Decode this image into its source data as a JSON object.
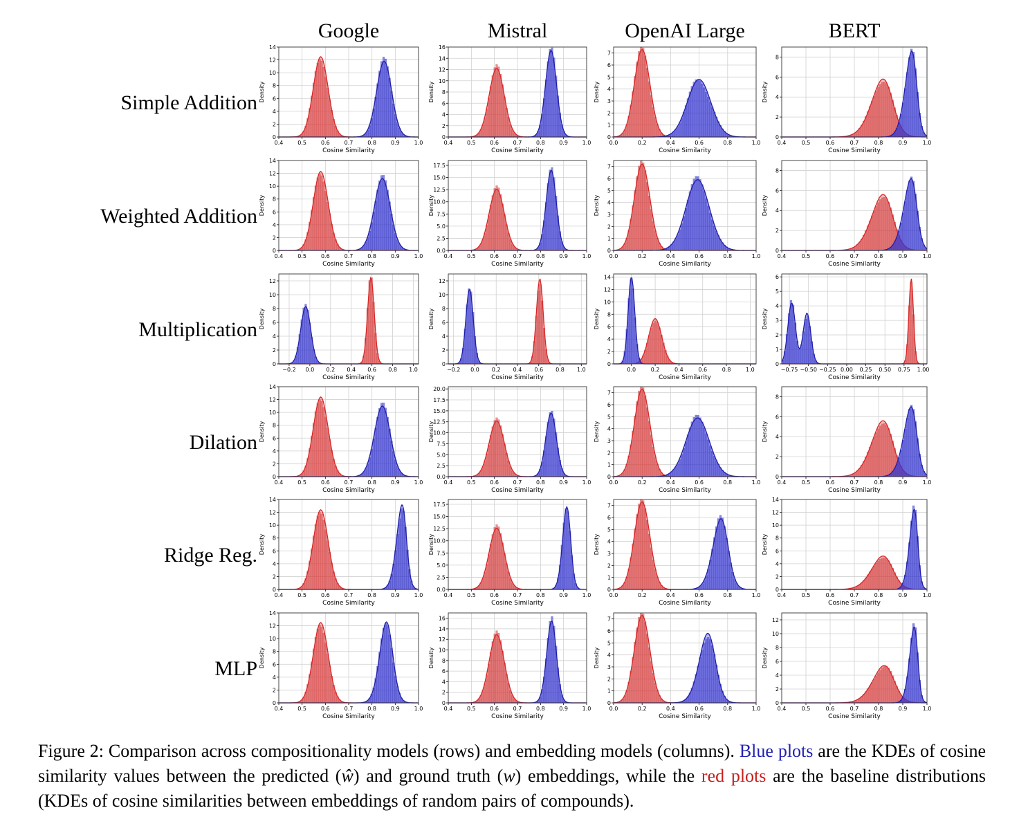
{
  "columns": [
    "Google",
    "Mistral",
    "OpenAI Large",
    "BERT"
  ],
  "rows": [
    "Simple Addition",
    "Weighted Addition",
    "Multiplication",
    "Dilation",
    "Ridge Reg.",
    "MLP"
  ],
  "axis": {
    "xlabel": "Cosine Similarity",
    "ylabel": "Density"
  },
  "colors": {
    "red_fill": "#d64545",
    "red_line": "#d62728",
    "blue_fill": "#3a3ad0",
    "blue_line": "#1f1fa8",
    "grid": "#d0d0d0"
  },
  "caption": {
    "part1": "Figure 2: Comparison across compositionality models (rows) and embedding models (columns). ",
    "blue_phrase": "Blue plots",
    "part2": " are the KDEs of cosine similarity values between the predicted (",
    "w_hat": "ŵ",
    "part3": ") and ground truth (",
    "w": "w",
    "part4": ") embeddings, while the ",
    "red_phrase": "red plots",
    "part5": " are the baseline distributions (KDEs of cosine similarities between embeddings of random pairs of compounds)."
  },
  "chart_data": [
    {
      "row": "Simple Addition",
      "col": "Google",
      "type": "area",
      "xlim": [
        0.4,
        1.0
      ],
      "xticks": [
        "0.4",
        "0.5",
        "0.6",
        "0.7",
        "0.8",
        "0.9",
        "1.0"
      ],
      "ylim": [
        0,
        14
      ],
      "yticks": [
        "0",
        "2",
        "4",
        "6",
        "8",
        "10",
        "12",
        "14"
      ],
      "red": [
        {
          "mu": 0.58,
          "sd": 0.032,
          "peak": 12.5,
          "skew": 0
        }
      ],
      "blue": [
        {
          "mu": 0.865,
          "sd": 0.035,
          "peak": 11.8,
          "skew": -0.5
        }
      ]
    },
    {
      "row": "Simple Addition",
      "col": "Mistral",
      "type": "area",
      "xlim": [
        0.4,
        1.0
      ],
      "xticks": [
        "0.4",
        "0.5",
        "0.6",
        "0.7",
        "0.8",
        "0.9",
        "1.0"
      ],
      "ylim": [
        0,
        16
      ],
      "yticks": [
        "0",
        "2",
        "4",
        "6",
        "8",
        "10",
        "12",
        "14",
        "16"
      ],
      "red": [
        {
          "mu": 0.61,
          "sd": 0.033,
          "peak": 12.2,
          "skew": 0
        }
      ],
      "blue": [
        {
          "mu": 0.855,
          "sd": 0.026,
          "peak": 15.4,
          "skew": -0.5
        }
      ]
    },
    {
      "row": "Simple Addition",
      "col": "OpenAI Large",
      "type": "area",
      "xlim": [
        0.0,
        1.0
      ],
      "xticks": [
        "0.0",
        "0.2",
        "0.4",
        "0.6",
        "0.8",
        "1.0"
      ],
      "ylim": [
        0,
        7.5
      ],
      "yticks": [
        "0",
        "1",
        "2",
        "3",
        "4",
        "5",
        "6",
        "7"
      ],
      "red": [
        {
          "mu": 0.2,
          "sd": 0.055,
          "peak": 7.3,
          "skew": 0
        }
      ],
      "blue": [
        {
          "mu": 0.62,
          "sd": 0.085,
          "peak": 4.8,
          "skew": -0.3
        }
      ]
    },
    {
      "row": "Simple Addition",
      "col": "BERT",
      "type": "area",
      "xlim": [
        0.4,
        1.0
      ],
      "xticks": [
        "0.4",
        "0.5",
        "0.6",
        "0.7",
        "0.8",
        "0.9",
        "1.0"
      ],
      "ylim": [
        0,
        9
      ],
      "yticks": [
        "0",
        "2",
        "4",
        "6",
        "8"
      ],
      "red": [
        {
          "mu": 0.85,
          "sd": 0.06,
          "peak": 5.8,
          "skew": -1.4
        }
      ],
      "blue": [
        {
          "mu": 0.955,
          "sd": 0.035,
          "peak": 8.6,
          "skew": -1.8
        }
      ]
    },
    {
      "row": "Weighted Addition",
      "col": "Google",
      "type": "area",
      "xlim": [
        0.4,
        1.0
      ],
      "xticks": [
        "0.4",
        "0.5",
        "0.6",
        "0.7",
        "0.8",
        "0.9",
        "1.0"
      ],
      "ylim": [
        0,
        14
      ],
      "yticks": [
        "0",
        "2",
        "4",
        "6",
        "8",
        "10",
        "12",
        "14"
      ],
      "red": [
        {
          "mu": 0.58,
          "sd": 0.032,
          "peak": 12.3,
          "skew": 0
        }
      ],
      "blue": [
        {
          "mu": 0.86,
          "sd": 0.038,
          "peak": 11.2,
          "skew": -0.6
        }
      ]
    },
    {
      "row": "Weighted Addition",
      "col": "Mistral",
      "type": "area",
      "xlim": [
        0.4,
        1.0
      ],
      "xticks": [
        "0.4",
        "0.5",
        "0.6",
        "0.7",
        "0.8",
        "0.9",
        "1.0"
      ],
      "ylim": [
        0,
        18.5
      ],
      "yticks": [
        "0.0",
        "2.5",
        "5.0",
        "7.5",
        "10.0",
        "12.5",
        "15.0",
        "17.5"
      ],
      "red": [
        {
          "mu": 0.61,
          "sd": 0.033,
          "peak": 12.6,
          "skew": 0
        }
      ],
      "blue": [
        {
          "mu": 0.855,
          "sd": 0.024,
          "peak": 16.5,
          "skew": -0.5
        }
      ]
    },
    {
      "row": "Weighted Addition",
      "col": "OpenAI Large",
      "type": "area",
      "xlim": [
        0.0,
        1.0
      ],
      "xticks": [
        "0.0",
        "0.2",
        "0.4",
        "0.6",
        "0.8",
        "1.0"
      ],
      "ylim": [
        0,
        7.5
      ],
      "yticks": [
        "0",
        "1",
        "2",
        "3",
        "4",
        "5",
        "6",
        "7"
      ],
      "red": [
        {
          "mu": 0.2,
          "sd": 0.055,
          "peak": 7.2,
          "skew": 0
        }
      ],
      "blue": [
        {
          "mu": 0.61,
          "sd": 0.085,
          "peak": 5.9,
          "skew": -0.3
        }
      ]
    },
    {
      "row": "Weighted Addition",
      "col": "BERT",
      "type": "area",
      "xlim": [
        0.4,
        1.0
      ],
      "xticks": [
        "0.4",
        "0.5",
        "0.6",
        "0.7",
        "0.8",
        "0.9",
        "1.0"
      ],
      "ylim": [
        0,
        9
      ],
      "yticks": [
        "0",
        "2",
        "4",
        "6",
        "8"
      ],
      "red": [
        {
          "mu": 0.85,
          "sd": 0.06,
          "peak": 5.6,
          "skew": -1.4
        }
      ],
      "blue": [
        {
          "mu": 0.955,
          "sd": 0.04,
          "peak": 7.2,
          "skew": -1.8
        }
      ]
    },
    {
      "row": "Multiplication",
      "col": "Google",
      "type": "area",
      "xlim": [
        -0.3,
        1.05
      ],
      "xticks": [
        "−0.2",
        "0.0",
        "0.2",
        "0.4",
        "0.6",
        "0.8",
        "1.0"
      ],
      "xtickvals": [
        -0.2,
        0.0,
        0.2,
        0.4,
        0.6,
        0.8,
        1.0
      ],
      "ylim": [
        0,
        13
      ],
      "yticks": [
        "0",
        "2",
        "4",
        "6",
        "8",
        "10",
        "12"
      ],
      "red": [
        {
          "mu": 0.59,
          "sd": 0.032,
          "peak": 12.5,
          "skew": 0
        }
      ],
      "blue": [
        {
          "mu": -0.04,
          "sd": 0.048,
          "peak": 8.3,
          "skew": 0
        }
      ]
    },
    {
      "row": "Multiplication",
      "col": "Mistral",
      "type": "area",
      "xlim": [
        -0.25,
        1.05
      ],
      "xticks": [
        "−0.2",
        "0.0",
        "0.2",
        "0.4",
        "0.6",
        "0.8",
        "1.0"
      ],
      "xtickvals": [
        -0.2,
        0.0,
        0.2,
        0.4,
        0.6,
        0.8,
        1.0
      ],
      "ylim": [
        0,
        13
      ],
      "yticks": [
        "0",
        "2",
        "4",
        "6",
        "8",
        "10",
        "12"
      ],
      "red": [
        {
          "mu": 0.61,
          "sd": 0.032,
          "peak": 12.3,
          "skew": 0
        }
      ],
      "blue": [
        {
          "mu": -0.05,
          "sd": 0.035,
          "peak": 10.8,
          "skew": 0
        }
      ]
    },
    {
      "row": "Multiplication",
      "col": "OpenAI Large",
      "type": "area",
      "xlim": [
        -0.15,
        1.05
      ],
      "xticks": [
        "0.0",
        "0.2",
        "0.4",
        "0.6",
        "0.8",
        "1.0"
      ],
      "xtickvals": [
        0.0,
        0.2,
        0.4,
        0.6,
        0.8,
        1.0
      ],
      "ylim": [
        0,
        14.5
      ],
      "yticks": [
        "0",
        "2",
        "4",
        "6",
        "8",
        "10",
        "12",
        "14"
      ],
      "red": [
        {
          "mu": 0.2,
          "sd": 0.055,
          "peak": 7.3,
          "skew": 0
        }
      ],
      "blue": [
        {
          "mu": 0.0,
          "sd": 0.028,
          "peak": 14.0,
          "skew": 0
        }
      ]
    },
    {
      "row": "Multiplication",
      "col": "BERT",
      "type": "area",
      "xlim": [
        -0.85,
        1.05
      ],
      "xticks": [
        "−0.75",
        "−0.50",
        "−0.25",
        "0.00",
        "0.25",
        "0.50",
        "0.75",
        "1.00"
      ],
      "xtickvals": [
        -0.75,
        -0.5,
        -0.25,
        0.0,
        0.25,
        0.5,
        0.75,
        1.0
      ],
      "ylim": [
        0,
        6.2
      ],
      "yticks": [
        "0",
        "1",
        "2",
        "3",
        "4",
        "5",
        "6"
      ],
      "red": [
        {
          "mu": 0.86,
          "sd": 0.035,
          "peak": 5.9,
          "skew": -0.8
        }
      ],
      "blue": [
        {
          "mu": -0.72,
          "sd": 0.05,
          "peak": 4.2,
          "skew": 0
        },
        {
          "mu": -0.52,
          "sd": 0.05,
          "peak": 3.5,
          "skew": 0
        }
      ]
    },
    {
      "row": "Dilation",
      "col": "Google",
      "type": "area",
      "xlim": [
        0.4,
        1.0
      ],
      "xticks": [
        "0.4",
        "0.5",
        "0.6",
        "0.7",
        "0.8",
        "0.9",
        "1.0"
      ],
      "ylim": [
        0,
        14
      ],
      "yticks": [
        "0",
        "2",
        "4",
        "6",
        "8",
        "10",
        "12",
        "14"
      ],
      "red": [
        {
          "mu": 0.58,
          "sd": 0.032,
          "peak": 12.4,
          "skew": 0
        }
      ],
      "blue": [
        {
          "mu": 0.86,
          "sd": 0.038,
          "peak": 11.0,
          "skew": -0.6
        }
      ]
    },
    {
      "row": "Dilation",
      "col": "Mistral",
      "type": "area",
      "xlim": [
        0.4,
        1.0
      ],
      "xticks": [
        "0.4",
        "0.5",
        "0.6",
        "0.7",
        "0.8",
        "0.9",
        "1.0"
      ],
      "ylim": [
        0,
        20.5
      ],
      "yticks": [
        "0.0",
        "2.5",
        "5.0",
        "7.5",
        "10.0",
        "12.5",
        "15.0",
        "17.5",
        "20.0"
      ],
      "red": [
        {
          "mu": 0.61,
          "sd": 0.033,
          "peak": 12.7,
          "skew": 0
        }
      ],
      "blue": [
        {
          "mu": 0.855,
          "sd": 0.025,
          "peak": 14.5,
          "skew": -0.5
        }
      ]
    },
    {
      "row": "Dilation",
      "col": "OpenAI Large",
      "type": "area",
      "xlim": [
        0.0,
        1.0
      ],
      "xticks": [
        "0.0",
        "0.2",
        "0.4",
        "0.6",
        "0.8",
        "1.0"
      ],
      "ylim": [
        0,
        7.5
      ],
      "yticks": [
        "0",
        "1",
        "2",
        "3",
        "4",
        "5",
        "6",
        "7"
      ],
      "red": [
        {
          "mu": 0.2,
          "sd": 0.055,
          "peak": 7.3,
          "skew": 0
        }
      ],
      "blue": [
        {
          "mu": 0.61,
          "sd": 0.085,
          "peak": 4.9,
          "skew": -0.3
        }
      ]
    },
    {
      "row": "Dilation",
      "col": "BERT",
      "type": "area",
      "xlim": [
        0.4,
        1.0
      ],
      "xticks": [
        "0.4",
        "0.5",
        "0.6",
        "0.7",
        "0.8",
        "0.9",
        "1.0"
      ],
      "ylim": [
        0,
        9
      ],
      "yticks": [
        "0",
        "2",
        "4",
        "6",
        "8"
      ],
      "red": [
        {
          "mu": 0.85,
          "sd": 0.06,
          "peak": 5.6,
          "skew": -1.4
        }
      ],
      "blue": [
        {
          "mu": 0.955,
          "sd": 0.04,
          "peak": 7.0,
          "skew": -1.8
        }
      ]
    },
    {
      "row": "Ridge Reg.",
      "col": "Google",
      "type": "area",
      "xlim": [
        0.4,
        1.0
      ],
      "xticks": [
        "0.4",
        "0.5",
        "0.6",
        "0.7",
        "0.8",
        "0.9",
        "1.0"
      ],
      "ylim": [
        0,
        14
      ],
      "yticks": [
        "0",
        "2",
        "4",
        "6",
        "8",
        "10",
        "12",
        "14"
      ],
      "red": [
        {
          "mu": 0.58,
          "sd": 0.032,
          "peak": 12.4,
          "skew": 0
        }
      ],
      "blue": [
        {
          "mu": 0.945,
          "sd": 0.03,
          "peak": 13.2,
          "skew": -1.6
        }
      ]
    },
    {
      "row": "Ridge Reg.",
      "col": "Mistral",
      "type": "area",
      "xlim": [
        0.4,
        1.0
      ],
      "xticks": [
        "0.4",
        "0.5",
        "0.6",
        "0.7",
        "0.8",
        "0.9",
        "1.0"
      ],
      "ylim": [
        0,
        18.5
      ],
      "yticks": [
        "0.0",
        "2.5",
        "5.0",
        "7.5",
        "10.0",
        "12.5",
        "15.0",
        "17.5"
      ],
      "red": [
        {
          "mu": 0.61,
          "sd": 0.033,
          "peak": 12.6,
          "skew": 0
        }
      ],
      "blue": [
        {
          "mu": 0.925,
          "sd": 0.022,
          "peak": 17.0,
          "skew": -1.0
        }
      ]
    },
    {
      "row": "Ridge Reg.",
      "col": "OpenAI Large",
      "type": "area",
      "xlim": [
        0.0,
        1.0
      ],
      "xticks": [
        "0.0",
        "0.2",
        "0.4",
        "0.6",
        "0.8",
        "1.0"
      ],
      "ylim": [
        0,
        7.5
      ],
      "yticks": [
        "0",
        "1",
        "2",
        "3",
        "4",
        "5",
        "6",
        "7"
      ],
      "red": [
        {
          "mu": 0.2,
          "sd": 0.055,
          "peak": 7.3,
          "skew": 0
        }
      ],
      "blue": [
        {
          "mu": 0.79,
          "sd": 0.07,
          "peak": 5.9,
          "skew": -1.2
        }
      ]
    },
    {
      "row": "Ridge Reg.",
      "col": "BERT",
      "type": "area",
      "xlim": [
        0.4,
        1.0
      ],
      "xticks": [
        "0.4",
        "0.5",
        "0.6",
        "0.7",
        "0.8",
        "0.9",
        "1.0"
      ],
      "ylim": [
        0,
        14
      ],
      "yticks": [
        "0",
        "2",
        "4",
        "6",
        "8",
        "10",
        "12",
        "14"
      ],
      "red": [
        {
          "mu": 0.85,
          "sd": 0.06,
          "peak": 5.2,
          "skew": -1.4
        }
      ],
      "blue": [
        {
          "mu": 0.96,
          "sd": 0.025,
          "peak": 12.5,
          "skew": -1.8
        }
      ]
    },
    {
      "row": "MLP",
      "col": "Google",
      "type": "area",
      "xlim": [
        0.4,
        1.0
      ],
      "xticks": [
        "0.4",
        "0.5",
        "0.6",
        "0.7",
        "0.8",
        "0.9",
        "1.0"
      ],
      "ylim": [
        0,
        14
      ],
      "yticks": [
        "0",
        "2",
        "4",
        "6",
        "8",
        "10",
        "12",
        "14"
      ],
      "red": [
        {
          "mu": 0.58,
          "sd": 0.032,
          "peak": 12.5,
          "skew": 0
        }
      ],
      "blue": [
        {
          "mu": 0.88,
          "sd": 0.035,
          "peak": 12.6,
          "skew": -1.0
        }
      ]
    },
    {
      "row": "MLP",
      "col": "Mistral",
      "type": "area",
      "xlim": [
        0.4,
        1.0
      ],
      "xticks": [
        "0.4",
        "0.5",
        "0.6",
        "0.7",
        "0.8",
        "0.9",
        "1.0"
      ],
      "ylim": [
        0,
        17
      ],
      "yticks": [
        "0",
        "2",
        "4",
        "6",
        "8",
        "10",
        "12",
        "14",
        "16"
      ],
      "red": [
        {
          "mu": 0.61,
          "sd": 0.033,
          "peak": 12.9,
          "skew": 0
        }
      ],
      "blue": [
        {
          "mu": 0.86,
          "sd": 0.025,
          "peak": 15.5,
          "skew": -0.8
        }
      ]
    },
    {
      "row": "MLP",
      "col": "OpenAI Large",
      "type": "area",
      "xlim": [
        0.0,
        1.0
      ],
      "xticks": [
        "0.0",
        "0.2",
        "0.4",
        "0.6",
        "0.8",
        "1.0"
      ],
      "ylim": [
        0,
        7.5
      ],
      "yticks": [
        "0",
        "1",
        "2",
        "3",
        "4",
        "5",
        "6",
        "7"
      ],
      "red": [
        {
          "mu": 0.2,
          "sd": 0.055,
          "peak": 7.3,
          "skew": 0
        }
      ],
      "blue": [
        {
          "mu": 0.7,
          "sd": 0.075,
          "peak": 5.8,
          "skew": -1.2
        }
      ]
    },
    {
      "row": "MLP",
      "col": "BERT",
      "type": "area",
      "xlim": [
        0.4,
        1.0
      ],
      "xticks": [
        "0.4",
        "0.5",
        "0.6",
        "0.7",
        "0.8",
        "0.9",
        "1.0"
      ],
      "ylim": [
        0,
        13
      ],
      "yticks": [
        "0",
        "2",
        "4",
        "6",
        "8",
        "10",
        "12"
      ],
      "red": [
        {
          "mu": 0.855,
          "sd": 0.06,
          "peak": 5.4,
          "skew": -1.4
        }
      ],
      "blue": [
        {
          "mu": 0.96,
          "sd": 0.025,
          "peak": 11.0,
          "skew": -1.8
        }
      ]
    }
  ]
}
